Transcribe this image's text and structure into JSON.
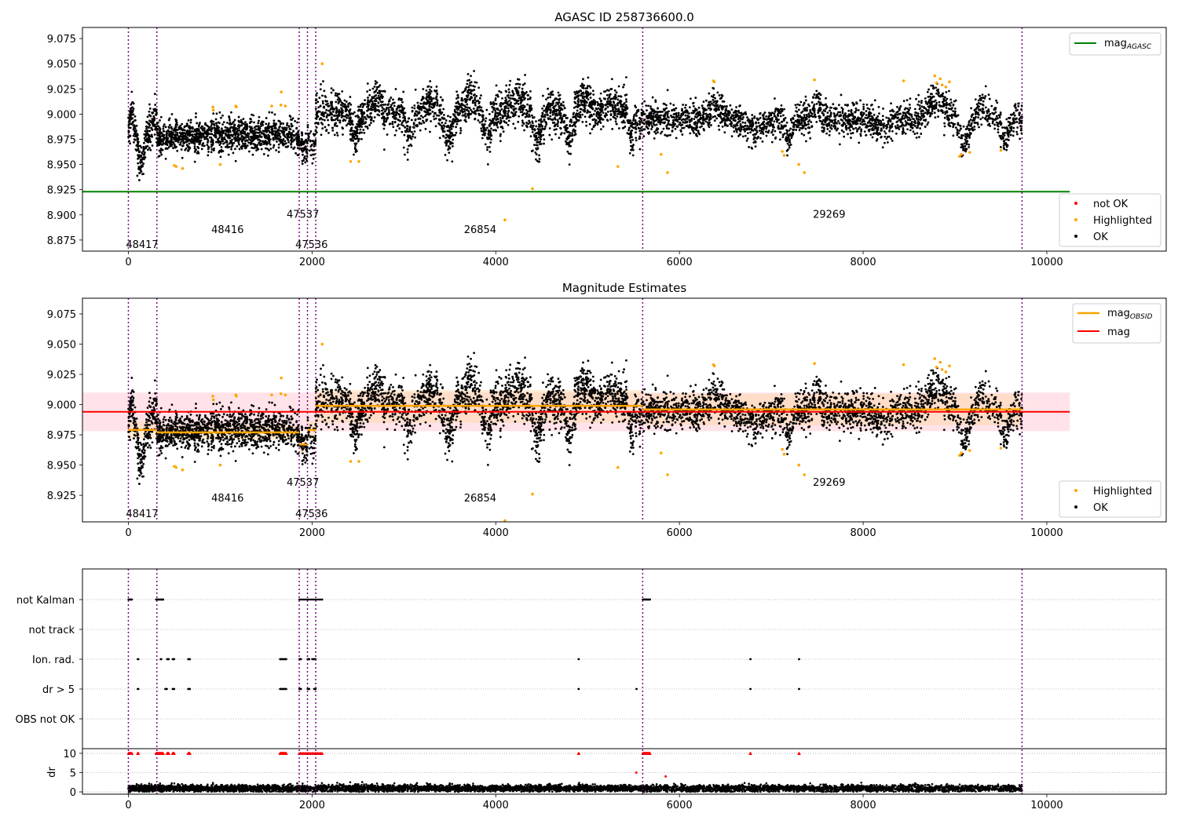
{
  "figure": {
    "colors": {
      "ok": "#000000",
      "highlighted": "#ffa500",
      "not_ok": "#ff0000",
      "mag_agasc": "#008000",
      "mag_obsid": "#ffa500",
      "mag": "#ff0000",
      "obsid_line": "#800080",
      "band_mag": "#ffc0cb",
      "band_obsid": "#ffd7a8"
    }
  },
  "chart_data": [
    {
      "type": "scatter",
      "title": "AGASC ID 258736600.0",
      "xlim": [
        -500,
        11300
      ],
      "ylim": [
        8.864,
        9.086
      ],
      "x_ticks": [
        0,
        2000,
        4000,
        6000,
        8000,
        10000
      ],
      "y_ticks": [
        8.875,
        8.9,
        8.925,
        8.95,
        8.975,
        9.0,
        9.025,
        9.05,
        9.075
      ],
      "y_tick_labels": [
        "8.875",
        "8.900",
        "8.925",
        "8.950",
        "8.975",
        "9.000",
        "9.025",
        "9.050",
        "9.075"
      ],
      "x_tick_labels": [
        "0",
        "2000",
        "4000",
        "6000",
        "8000",
        "10000"
      ],
      "grid": false,
      "obsid_boundaries": [
        0,
        310,
        1860,
        1950,
        2040,
        5600,
        9730
      ],
      "obsid_labels": [
        {
          "text": "48417",
          "x": 150,
          "y": 8.871
        },
        {
          "text": "48416",
          "x": 1080,
          "y": 8.886
        },
        {
          "text": "47537",
          "x": 1900,
          "y": 8.901
        },
        {
          "text": "47536",
          "x": 1995,
          "y": 8.871
        },
        {
          "text": "26854",
          "x": 3830,
          "y": 8.886
        },
        {
          "text": "29269",
          "x": 7630,
          "y": 8.901
        }
      ],
      "lines": [
        {
          "name": "mag$_{AGASC}$",
          "label_main": "mag",
          "label_sub": "AGASC",
          "y": 8.923,
          "x_range": [
            -500,
            10250
          ]
        }
      ],
      "series": [
        {
          "name": "OK",
          "description": "per-frame magnitude samples, mostly 8.95–9.03"
        },
        {
          "name": "Highlighted",
          "points": [
            [
              500,
              8.949
            ],
            [
              520,
              8.948
            ],
            [
              590,
              8.946
            ],
            [
              920,
              9.007
            ],
            [
              925,
              9.004
            ],
            [
              1000,
              8.95
            ],
            [
              1170,
              9.008
            ],
            [
              1175,
              9.007
            ],
            [
              1560,
              9.008
            ],
            [
              1660,
              9.009
            ],
            [
              1665,
              9.022
            ],
            [
              1710,
              9.008
            ],
            [
              2110,
              9.05
            ],
            [
              2420,
              8.953
            ],
            [
              2510,
              8.953
            ],
            [
              4100,
              8.895
            ],
            [
              4400,
              8.926
            ],
            [
              5330,
              8.948
            ],
            [
              5800,
              8.96
            ],
            [
              5870,
              8.942
            ],
            [
              6370,
              9.033
            ],
            [
              6380,
              9.032
            ],
            [
              7120,
              8.963
            ],
            [
              7140,
              8.959
            ],
            [
              7300,
              8.95
            ],
            [
              7360,
              8.942
            ],
            [
              7470,
              9.034
            ],
            [
              8440,
              9.033
            ],
            [
              8780,
              9.038
            ],
            [
              8800,
              9.031
            ],
            [
              8840,
              9.035
            ],
            [
              8860,
              9.029
            ],
            [
              8900,
              9.027
            ],
            [
              8940,
              9.032
            ],
            [
              9050,
              8.958
            ],
            [
              9070,
              8.96
            ],
            [
              9160,
              8.962
            ],
            [
              9500,
              8.964
            ]
          ]
        },
        {
          "name": "not OK",
          "points": []
        }
      ],
      "legends": [
        {
          "placement": "upper-right",
          "entries": [
            "mag$_{AGASC}$"
          ]
        },
        {
          "placement": "lower-right",
          "entries": [
            "not OK",
            "Highlighted",
            "OK"
          ]
        }
      ]
    },
    {
      "type": "scatter",
      "title": "Magnitude Estimates",
      "xlim": [
        -500,
        11300
      ],
      "ylim": [
        8.903,
        9.088
      ],
      "x_ticks": [
        0,
        2000,
        4000,
        6000,
        8000,
        10000
      ],
      "y_ticks": [
        8.925,
        8.95,
        8.975,
        9.0,
        9.025,
        9.05,
        9.075
      ],
      "y_tick_labels": [
        "8.925",
        "8.950",
        "8.975",
        "9.000",
        "9.025",
        "9.050",
        "9.075"
      ],
      "x_tick_labels": [
        "0",
        "2000",
        "4000",
        "6000",
        "8000",
        "10000"
      ],
      "grid": false,
      "obsid_labels": [
        {
          "text": "48417",
          "x": 150,
          "y": 8.91
        },
        {
          "text": "48416",
          "x": 1080,
          "y": 8.923
        },
        {
          "text": "47537",
          "x": 1900,
          "y": 8.936
        },
        {
          "text": "47536",
          "x": 1995,
          "y": 8.91
        },
        {
          "text": "26854",
          "x": 3830,
          "y": 8.923
        },
        {
          "text": "29269",
          "x": 7630,
          "y": 8.936
        }
      ],
      "mag": {
        "y": 8.994,
        "band": [
          8.978,
          9.01
        ],
        "x_range": [
          -500,
          10250
        ]
      },
      "mag_obsid": [
        {
          "x": [
            0,
            310
          ],
          "y": 8.979,
          "band": [
            8.972,
            8.986
          ]
        },
        {
          "x": [
            310,
            1860
          ],
          "y": 8.977,
          "band": [
            8.971,
            8.983
          ]
        },
        {
          "x": [
            1860,
            1950
          ],
          "y": 8.967,
          "band": [
            8.96,
            8.974
          ]
        },
        {
          "x": [
            1950,
            2040
          ],
          "y": 8.979,
          "band": [
            8.972,
            8.986
          ]
        },
        {
          "x": [
            2040,
            5600
          ],
          "y": 8.999,
          "band": [
            8.985,
            9.012
          ]
        },
        {
          "x": [
            5600,
            9730
          ],
          "y": 8.996,
          "band": [
            8.983,
            9.009
          ]
        }
      ],
      "series": [
        {
          "name": "OK"
        },
        {
          "name": "Highlighted",
          "extra_points": [
            [
              4100,
              8.904
            ]
          ]
        }
      ],
      "legends": [
        {
          "placement": "upper-right",
          "entries": [
            "mag$_{OBSID}$",
            "mag"
          ]
        },
        {
          "placement": "lower-right",
          "entries": [
            "Highlighted",
            "OK"
          ]
        }
      ]
    },
    {
      "type": "scatter",
      "title": "",
      "xlim": [
        -500,
        11300
      ],
      "x_ticks": [
        0,
        2000,
        4000,
        6000,
        8000,
        10000
      ],
      "x_tick_labels": [
        "0",
        "2000",
        "4000",
        "6000",
        "8000",
        "10000"
      ],
      "flag_categories": [
        "not Kalman",
        "not track",
        "Ion. rad.",
        "dr > 5",
        "OBS not OK"
      ],
      "flags": {
        "not Kalman": [
          [
            0,
            40
          ],
          [
            300,
            380
          ],
          [
            1860,
            2110
          ],
          [
            5600,
            5680
          ]
        ],
        "not track": [],
        "Ion. rad.": [
          [
            100,
            110
          ],
          [
            350,
            360
          ],
          [
            420,
            440
          ],
          [
            480,
            500
          ],
          [
            650,
            670
          ],
          [
            1650,
            1720
          ],
          [
            1860,
            1880
          ],
          [
            1950,
            1970
          ],
          [
            2000,
            2040
          ],
          [
            4900,
            4905
          ],
          [
            6770,
            6775
          ],
          [
            7300,
            7305
          ]
        ],
        "dr > 5": [
          [
            100,
            110
          ],
          [
            400,
            420
          ],
          [
            480,
            500
          ],
          [
            650,
            670
          ],
          [
            1650,
            1720
          ],
          [
            1860,
            1880
          ],
          [
            1950,
            1970
          ],
          [
            2020,
            2040
          ],
          [
            4900,
            4905
          ],
          [
            5530,
            5535
          ],
          [
            6770,
            6775
          ],
          [
            7300,
            7305
          ]
        ],
        "OBS not OK": []
      },
      "dr": {
        "ylabel": "dr",
        "y_ticks": [
          0,
          5,
          10
        ],
        "y_tick_labels": [
          "0",
          "5",
          "10"
        ],
        "ylim": [
          -0.6,
          10.8
        ],
        "clip_at": 10,
        "red_points": [
          [
            5530,
            5
          ],
          [
            5850,
            4
          ]
        ],
        "clipped_ranges": [
          [
            0,
            40
          ],
          [
            100,
            110
          ],
          [
            300,
            380
          ],
          [
            420,
            440
          ],
          [
            480,
            500
          ],
          [
            650,
            670
          ],
          [
            1650,
            1720
          ],
          [
            1860,
            2110
          ],
          [
            4900,
            4905
          ],
          [
            5600,
            5680
          ],
          [
            6770,
            6775
          ],
          [
            7300,
            7305
          ]
        ]
      }
    }
  ]
}
